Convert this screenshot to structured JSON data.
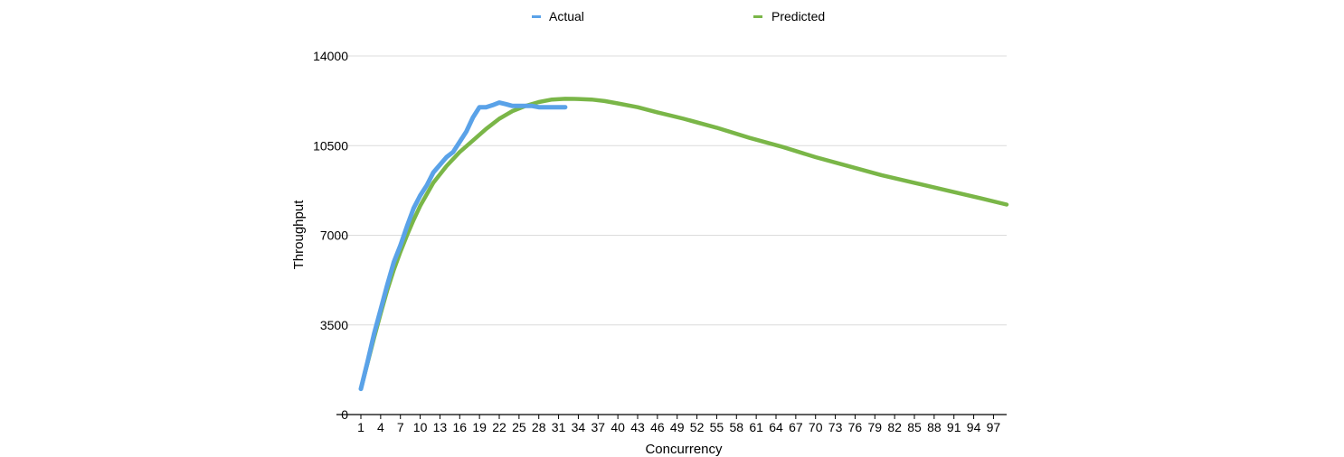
{
  "chart_data": {
    "type": "line",
    "title": "",
    "xlabel": "Concurrency",
    "ylabel": "Throughput",
    "xlim": [
      1,
      99
    ],
    "ylim": [
      0,
      14000
    ],
    "y_ticks": [
      0,
      3500,
      7000,
      10500,
      14000
    ],
    "x_ticks": [
      1,
      4,
      7,
      10,
      13,
      16,
      19,
      22,
      25,
      28,
      31,
      34,
      37,
      40,
      43,
      46,
      49,
      52,
      55,
      58,
      61,
      64,
      67,
      70,
      73,
      76,
      79,
      82,
      85,
      88,
      91,
      94,
      97
    ],
    "grid": true,
    "legend": "top",
    "series": [
      {
        "name": "Actual",
        "color": "#5aa2e8",
        "x": [
          1,
          2,
          3,
          4,
          5,
          6,
          7,
          8,
          9,
          10,
          11,
          12,
          13,
          14,
          15,
          16,
          17,
          18,
          19,
          20,
          21,
          22,
          23,
          24,
          25,
          26,
          27,
          28,
          29,
          30,
          31,
          32
        ],
        "y": [
          1000,
          2050,
          3150,
          4100,
          5050,
          5950,
          6600,
          7350,
          8050,
          8550,
          8950,
          9450,
          9750,
          10050,
          10250,
          10650,
          11050,
          11600,
          12000,
          12000,
          12080,
          12180,
          12120,
          12050,
          12050,
          12050,
          12050,
          12000,
          12000,
          12000,
          12000,
          12000
        ]
      },
      {
        "name": "Predicted",
        "color": "#7ab648",
        "x": [
          1,
          2,
          3,
          4,
          5,
          6,
          7,
          8,
          9,
          10,
          12,
          14,
          16,
          18,
          20,
          22,
          24,
          26,
          28,
          30,
          32,
          34,
          36,
          38,
          40,
          43,
          46,
          50,
          55,
          60,
          65,
          70,
          75,
          80,
          85,
          90,
          95,
          99
        ],
        "y": [
          1000,
          2000,
          3000,
          3950,
          4850,
          5650,
          6350,
          7000,
          7600,
          8150,
          9050,
          9700,
          10250,
          10700,
          11150,
          11550,
          11850,
          12050,
          12200,
          12300,
          12330,
          12320,
          12300,
          12240,
          12150,
          12000,
          11800,
          11550,
          11200,
          10800,
          10450,
          10050,
          9700,
          9350,
          9050,
          8750,
          8450,
          8200
        ]
      }
    ]
  }
}
